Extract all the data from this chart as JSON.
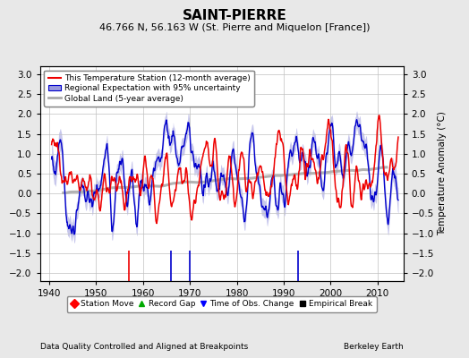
{
  "title": "SAINT-PIERRE",
  "subtitle": "46.766 N, 56.163 W (St. Pierre and Miquelon [France])",
  "ylabel": "Temperature Anomaly (°C)",
  "xlabel_left": "Data Quality Controlled and Aligned at Breakpoints",
  "xlabel_right": "Berkeley Earth",
  "ylim": [
    -2.2,
    3.2
  ],
  "xlim": [
    1938,
    2015.5
  ],
  "yticks": [
    -2,
    -1.5,
    -1,
    -0.5,
    0,
    0.5,
    1,
    1.5,
    2,
    2.5,
    3
  ],
  "xticks": [
    1940,
    1950,
    1960,
    1970,
    1980,
    1990,
    2000,
    2010
  ],
  "station_move_years": [
    1957
  ],
  "record_gap_years": [],
  "time_obs_change_years": [
    1966,
    1970,
    1993
  ],
  "empirical_break_years": [],
  "background_color": "#e8e8e8",
  "plot_bg_color": "#ffffff",
  "grid_color": "#c0c0c0",
  "red_color": "#ee0000",
  "blue_color": "#0000cc",
  "blue_fill_color": "#9999dd",
  "gray_color": "#aaaaaa",
  "title_fontsize": 11,
  "subtitle_fontsize": 8,
  "label_fontsize": 7.5,
  "tick_fontsize": 7.5,
  "seed": 137
}
